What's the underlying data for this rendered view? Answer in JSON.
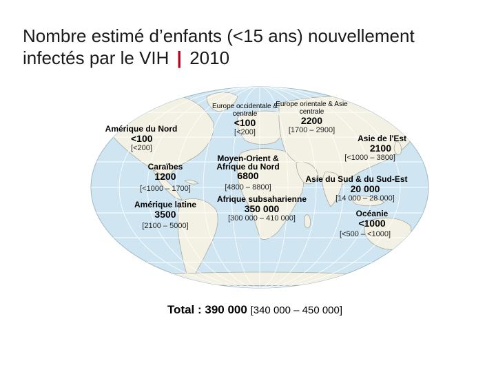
{
  "title": {
    "line1": "Nombre estimé d’enfants (<15 ans) nouvellement",
    "line2a": "infectés par le VIH",
    "separator": "|",
    "line2b": "2010"
  },
  "colors": {
    "ocean": "#cfe6f2",
    "land": "#f3f1e4",
    "grid": "#ffffff",
    "title_separator": "#c0001a"
  },
  "regions": {
    "north_america": {
      "name": "Amérique du Nord",
      "value": "<100",
      "range": "[<200]"
    },
    "caribbean": {
      "name": "Caraïbes",
      "value": "1200",
      "range": "[<1000 – 1700]"
    },
    "latin_america": {
      "name": "Amérique latine",
      "value": "3500",
      "range": "[2100 – 5000]"
    },
    "western_central_europe": {
      "name": "Europe occidentale & centrale",
      "value": "<100",
      "range": "[<200]"
    },
    "eastern_europe_central_asia": {
      "name": "Europe orientale & Asie centrale",
      "value": "2200",
      "range": "[1700 – 2900]"
    },
    "mena": {
      "name": "Moyen-Orient & Afrique du Nord",
      "value": "6800",
      "range": "[4800 – 8800]"
    },
    "ssa": {
      "name": "Afrique subsaharienne",
      "value": "350 000",
      "range": "[300 000 – 410 000]"
    },
    "east_asia": {
      "name": "Asie de l'Est",
      "value": "2100",
      "range": "[<1000 – 3800]"
    },
    "south_southeast_asia": {
      "name": "Asie du Sud & du Sud-Est",
      "value": "20 000",
      "range": "[14 000 – 28 000]"
    },
    "oceania": {
      "name": "Océanie",
      "value": "<1000",
      "range": "[<500 – <1000]"
    }
  },
  "total": {
    "label": "Total : 390 000",
    "range": "[340 000 – 450 000]"
  }
}
